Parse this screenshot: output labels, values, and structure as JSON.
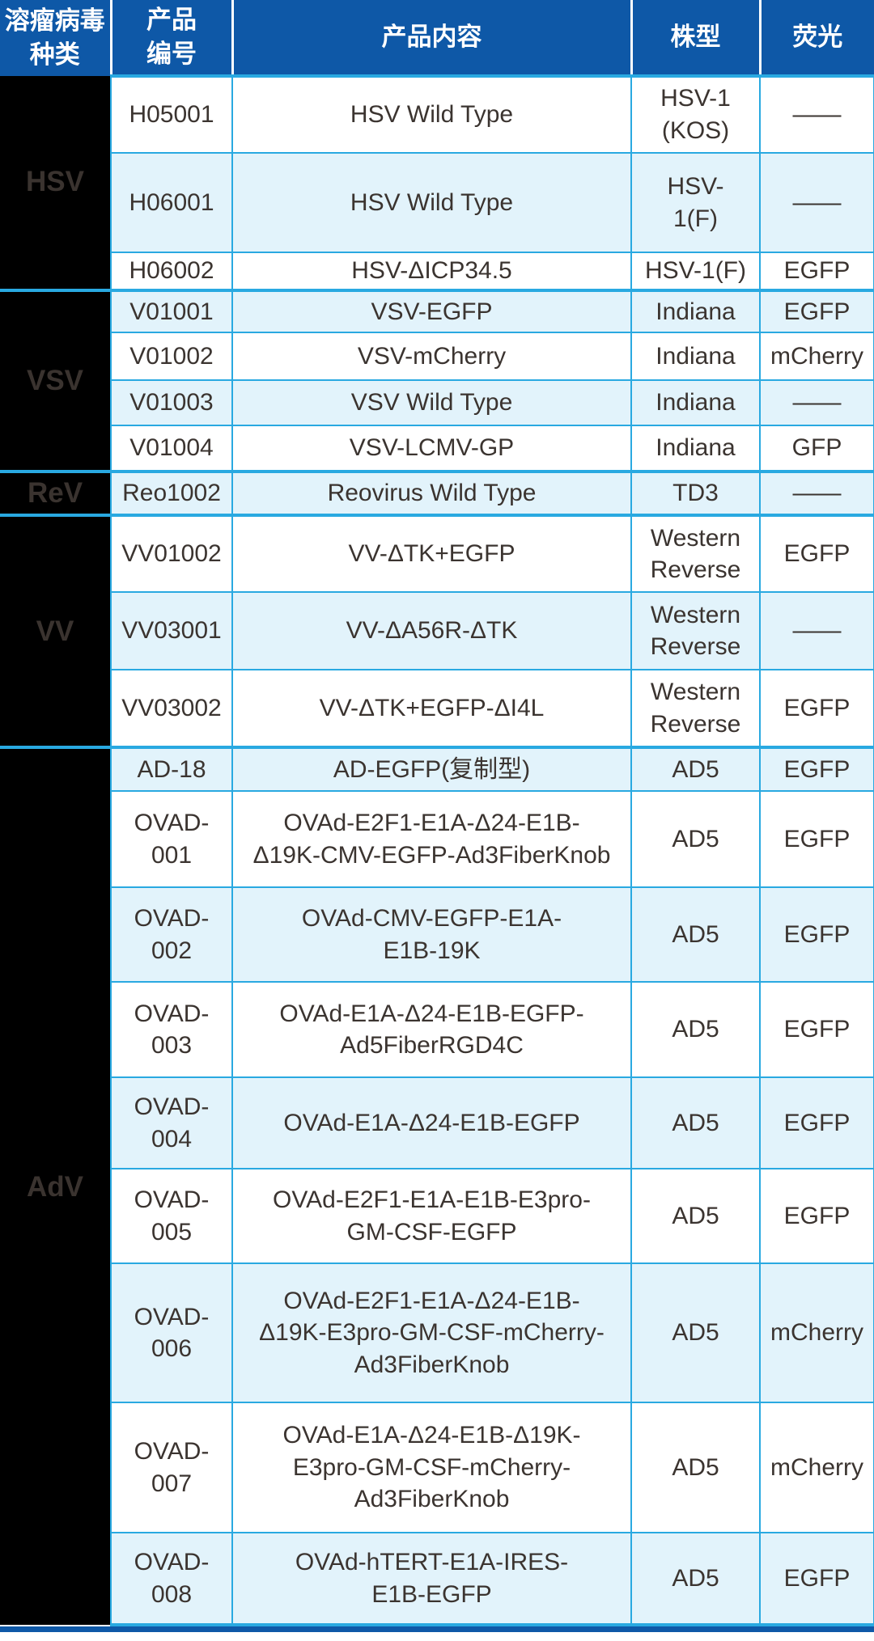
{
  "title": "溶瘤病毒产品列表",
  "colors": {
    "header_bg": "#0E58A7",
    "header_text": "#FFFFFF",
    "row_alt_bg": "#E2F3FB",
    "row_bg": "#FFFFFF",
    "cell_border": "#29A9E1",
    "group_column_bg": "#000000",
    "group_label_text": "#3A332F",
    "body_text": "#3B3430",
    "bottom_bar_bg": "#0E58A7"
  },
  "table": {
    "headers": [
      {
        "label": "溶瘤病毒\n种类"
      },
      {
        "label": "产品\n编号"
      },
      {
        "label": "产品内容"
      },
      {
        "label": "株型"
      },
      {
        "label": "荧光"
      }
    ],
    "groups": [
      {
        "name": "HSV",
        "rows": [
          {
            "id": "H05001",
            "content": "HSV Wild Type",
            "strain": "HSV-1\n(KOS)",
            "fluor": "——"
          },
          {
            "id": "H06001",
            "content": "HSV Wild Type",
            "strain": "HSV-\n1(F)",
            "fluor": "——"
          },
          {
            "id": "H06002",
            "content": "HSV-ΔICP34.5",
            "strain": "HSV-1(F)",
            "fluor": "EGFP"
          }
        ]
      },
      {
        "name": "VSV",
        "rows": [
          {
            "id": "V01001",
            "content": "VSV-EGFP",
            "strain": "Indiana",
            "fluor": "EGFP"
          },
          {
            "id": "V01002",
            "content": "VSV-mCherry",
            "strain": "Indiana",
            "fluor": "mCherry"
          },
          {
            "id": "V01003",
            "content": "VSV Wild Type",
            "strain": "Indiana",
            "fluor": "——"
          },
          {
            "id": "V01004",
            "content": "VSV-LCMV-GP",
            "strain": "Indiana",
            "fluor": "GFP"
          }
        ]
      },
      {
        "name": "ReV",
        "rows": [
          {
            "id": "Reo1002",
            "content": "Reovirus Wild Type",
            "strain": "TD3",
            "fluor": "——"
          }
        ]
      },
      {
        "name": "VV",
        "rows": [
          {
            "id": "VV01002",
            "content": "VV-ΔTK+EGFP",
            "strain": "Western\nReverse",
            "fluor": "EGFP"
          },
          {
            "id": "VV03001",
            "content": "VV-ΔA56R-ΔTK",
            "strain": "Western\nReverse",
            "fluor": "——"
          },
          {
            "id": "VV03002",
            "content": "VV-ΔTK+EGFP-ΔI4L",
            "strain": "Western\nReverse",
            "fluor": "EGFP"
          }
        ]
      },
      {
        "name": "AdV",
        "rows": [
          {
            "id": "AD-18",
            "content": "AD-EGFP(复制型)",
            "strain": "AD5",
            "fluor": "EGFP"
          },
          {
            "id": "OVAD-\n001",
            "content": "OVAd-E2F1-E1A-Δ24-E1B-\nΔ19K-CMV-EGFP-Ad3FiberKnob",
            "strain": "AD5",
            "fluor": "EGFP"
          },
          {
            "id": "OVAD-\n002",
            "content": "OVAd-CMV-EGFP-E1A-\nE1B-19K",
            "strain": "AD5",
            "fluor": "EGFP"
          },
          {
            "id": "OVAD-\n003",
            "content": "OVAd-E1A-Δ24-E1B-EGFP-\nAd5FiberRGD4C",
            "strain": "AD5",
            "fluor": "EGFP"
          },
          {
            "id": "OVAD-\n004",
            "content": "OVAd-E1A-Δ24-E1B-EGFP",
            "strain": "AD5",
            "fluor": "EGFP"
          },
          {
            "id": "OVAD-\n005",
            "content": "OVAd-E2F1-E1A-E1B-E3pro-\nGM-CSF-EGFP",
            "strain": "AD5",
            "fluor": "EGFP"
          },
          {
            "id": "OVAD-\n006",
            "content": "OVAd-E2F1-E1A-Δ24-E1B-\nΔ19K-E3pro-GM-CSF-mCherry-\nAd3FiberKnob",
            "strain": "AD5",
            "fluor": "mCherry"
          },
          {
            "id": "OVAD-\n007",
            "content": "OVAd-E1A-Δ24-E1B-Δ19K-\nE3pro-GM-CSF-mCherry-\nAd3FiberKnob",
            "strain": "AD5",
            "fluor": "mCherry"
          },
          {
            "id": "OVAD-\n008",
            "content": "OVAd-hTERT-E1A-IRES-\nE1B-EGFP",
            "strain": "AD5",
            "fluor": "EGFP"
          }
        ]
      }
    ]
  }
}
